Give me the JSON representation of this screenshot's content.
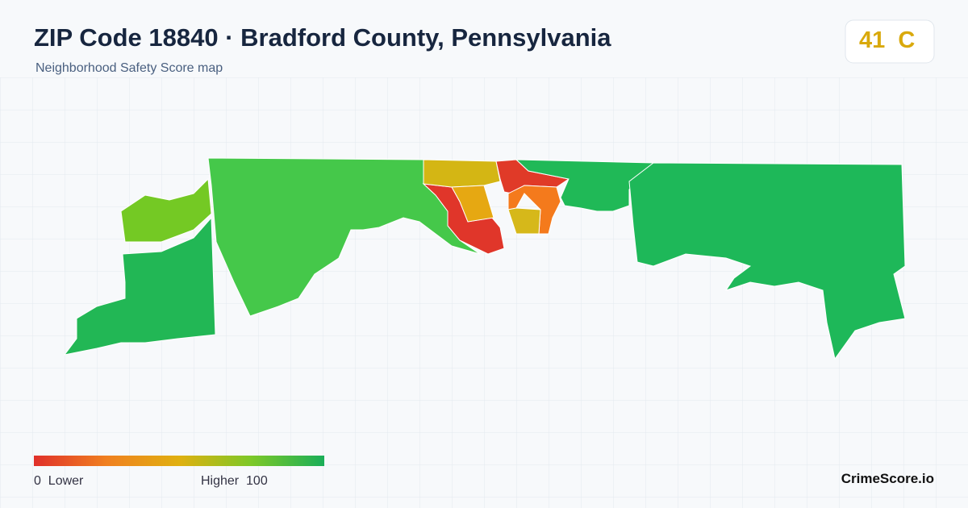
{
  "header": {
    "title": "ZIP Code 18840 · Bradford County, Pennsylvania",
    "subtitle": "Neighborhood Safety Score map"
  },
  "score": {
    "value": "41",
    "grade": "C"
  },
  "legend": {
    "min": 0,
    "min_label": "Lower",
    "max_label": "Higher",
    "max": 100
  },
  "brand": "CrimeScore.io"
}
